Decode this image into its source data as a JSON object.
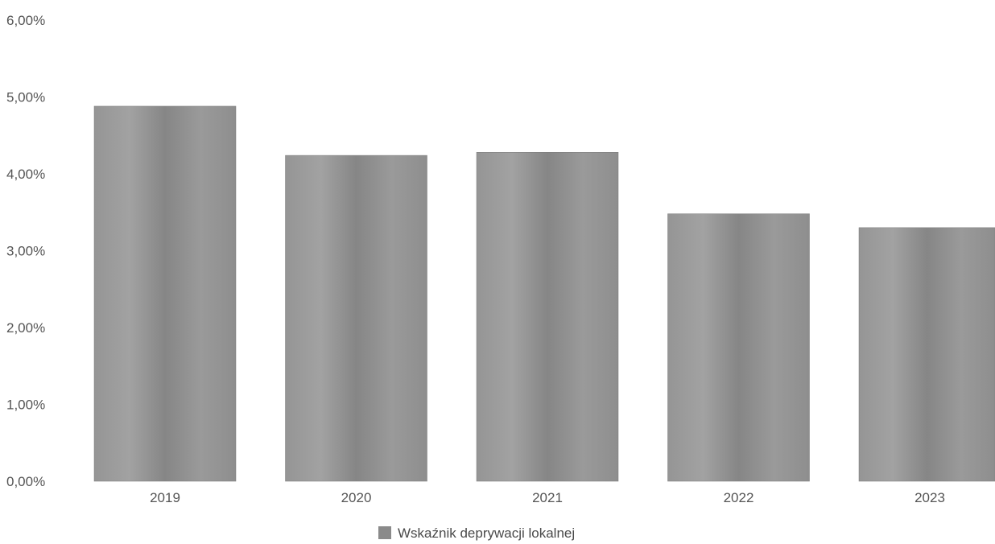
{
  "chart_data": {
    "type": "bar",
    "categories": [
      "2019",
      "2020",
      "2021",
      "2022",
      "2023"
    ],
    "series": [
      {
        "name": "Wskaźnik deprywacji lokalnej",
        "values": [
          4.88,
          4.24,
          4.28,
          3.48,
          3.3
        ]
      }
    ],
    "y_tick_labels": [
      "0,00%",
      "1,00%",
      "2,00%",
      "3,00%",
      "4,00%",
      "5,00%",
      "6,00%"
    ],
    "ylim": [
      0,
      6
    ],
    "grid": false,
    "legend_position": "bottom-center",
    "bar_color": "#8a8a8a"
  }
}
